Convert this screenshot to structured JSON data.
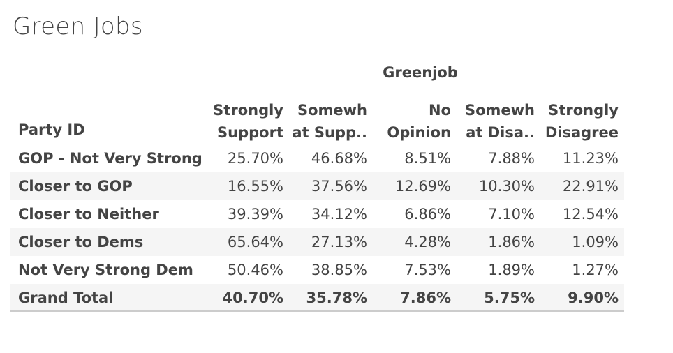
{
  "title": "Green Jobs",
  "chart_data": {
    "type": "table",
    "title": "Green Jobs",
    "column_group_header": "Greenjob",
    "row_header_label": "Party ID",
    "columns": [
      [
        "Strongly",
        "Support"
      ],
      [
        "Somewh",
        "at Supp.."
      ],
      [
        "No",
        "Opinion"
      ],
      [
        "Somewh",
        "at Disa.."
      ],
      [
        "Strongly",
        "Disagree"
      ]
    ],
    "rows": [
      {
        "name": "GOP - Not Very Strong",
        "values": [
          "25.70%",
          "46.68%",
          "8.51%",
          "7.88%",
          "11.23%"
        ]
      },
      {
        "name": "Closer to GOP",
        "values": [
          "16.55%",
          "37.56%",
          "12.69%",
          "10.30%",
          "22.91%"
        ]
      },
      {
        "name": "Closer to Neither",
        "values": [
          "39.39%",
          "34.12%",
          "6.86%",
          "7.10%",
          "12.54%"
        ]
      },
      {
        "name": "Closer to Dems",
        "values": [
          "65.64%",
          "27.13%",
          "4.28%",
          "1.86%",
          "1.09%"
        ]
      },
      {
        "name": "Not Very Strong Dem",
        "values": [
          "50.46%",
          "38.85%",
          "7.53%",
          "1.89%",
          "1.27%"
        ]
      }
    ],
    "total": {
      "name": "Grand Total",
      "values": [
        "40.70%",
        "35.78%",
        "7.86%",
        "5.75%",
        "9.90%"
      ]
    }
  }
}
